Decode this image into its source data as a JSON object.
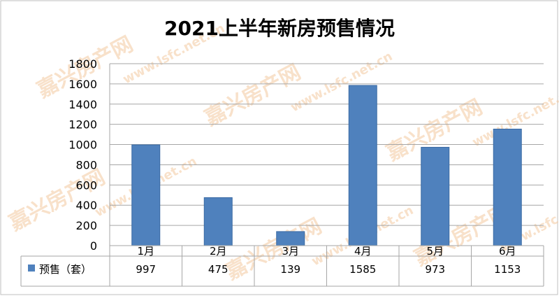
{
  "chart_data": {
    "type": "bar",
    "title": "2021上半年新房预售情况",
    "categories": [
      "1月",
      "2月",
      "3月",
      "4月",
      "5月",
      "6月"
    ],
    "series": [
      {
        "name": "预售（套）",
        "values": [
          997,
          475,
          139,
          1585,
          973,
          1153
        ],
        "color": "#4f81bd"
      }
    ],
    "ylim": [
      0,
      1800
    ],
    "yticks": [
      0,
      200,
      400,
      600,
      800,
      1000,
      1200,
      1400,
      1600,
      1800
    ],
    "grid": true,
    "legend": "data-table-left",
    "data_table": true
  },
  "watermark": {
    "text": "嘉兴房产网",
    "url": "www.lsfc.net.cn"
  }
}
